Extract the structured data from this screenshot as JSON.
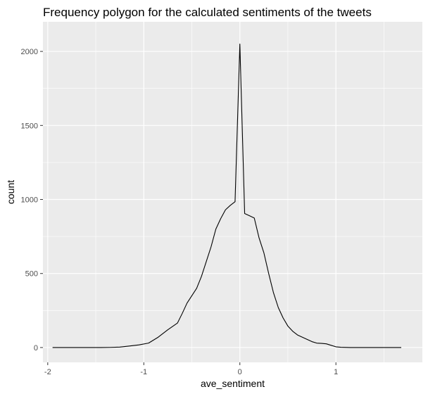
{
  "chart_data": {
    "type": "line",
    "title": "Frequency polygon for the calculated sentiments of the tweets",
    "xlabel": "ave_sentiment",
    "ylabel": "count",
    "xlim": [
      -2.05,
      1.9
    ],
    "ylim": [
      -100,
      2200
    ],
    "x_ticks": [
      -2,
      -1,
      0,
      1
    ],
    "x_tick_labels": [
      "-2",
      "-1",
      "0",
      "1"
    ],
    "y_ticks": [
      0,
      500,
      1000,
      1500,
      2000
    ],
    "y_tick_labels": [
      "0",
      "500",
      "1000",
      "1500",
      "2000"
    ],
    "x_minor": [
      -1.5,
      -0.5,
      0.5,
      1.5
    ],
    "y_minor": [
      250,
      750,
      1250,
      1750
    ],
    "grid": true,
    "panel_background": "#ebebeb",
    "grid_color": "#ffffff",
    "line_color": "#000000",
    "series": [
      {
        "x": [
          -1.95,
          -1.85,
          -1.75,
          -1.65,
          -1.55,
          -1.45,
          -1.35,
          -1.25,
          -1.15,
          -1.05,
          -0.95,
          -0.85,
          -0.75,
          -0.65,
          -0.6,
          -0.55,
          -0.45,
          -0.4,
          -0.35,
          -0.3,
          -0.25,
          -0.2,
          -0.15,
          -0.1,
          -0.05,
          0.0,
          0.05,
          0.1,
          0.15,
          0.2,
          0.25,
          0.3,
          0.35,
          0.4,
          0.45,
          0.5,
          0.55,
          0.6,
          0.65,
          0.7,
          0.75,
          0.8,
          0.85,
          0.9,
          0.95,
          1.0,
          1.05,
          1.15,
          1.25,
          1.35,
          1.45,
          1.55,
          1.68
        ],
        "y": [
          0,
          0,
          0,
          0,
          0,
          0,
          1,
          3,
          10,
          18,
          30,
          70,
          120,
          165,
          230,
          300,
          400,
          480,
          580,
          680,
          800,
          870,
          930,
          960,
          985,
          2050,
          905,
          890,
          875,
          740,
          640,
          500,
          370,
          270,
          200,
          145,
          110,
          85,
          70,
          55,
          40,
          30,
          28,
          25,
          15,
          5,
          2,
          0,
          0,
          0,
          0,
          0,
          0
        ]
      }
    ]
  }
}
